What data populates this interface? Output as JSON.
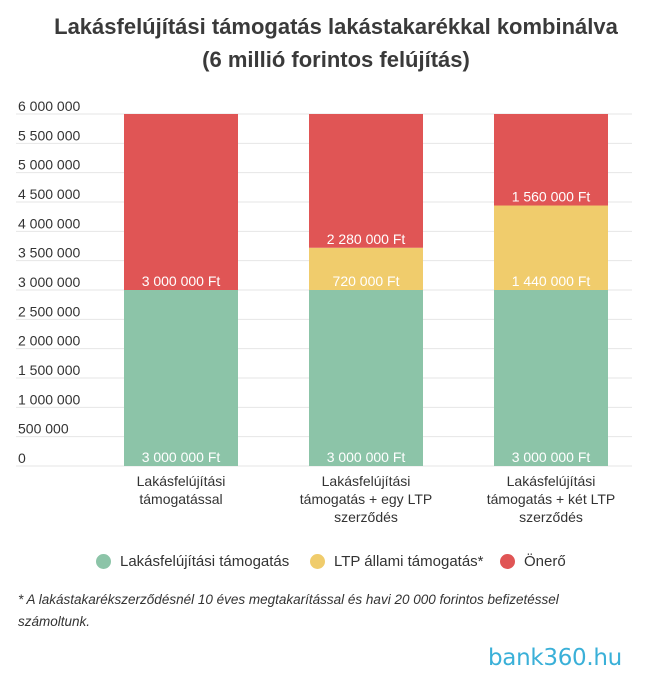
{
  "colors": {
    "support": "#8cc4a8",
    "ltp": "#f0cc6c",
    "own": "#e05555",
    "grid": "#e6e6e6",
    "text": "#333333"
  },
  "chart_data": {
    "type": "bar",
    "stacked": true,
    "title": "Lakásfelújítási támogatás lakástakarékkal kombinálva",
    "subtitle": "(6 millió forintos felújítás)",
    "ylim": [
      0,
      6000000
    ],
    "grid": true,
    "legend_position": "bottom",
    "ytick_labels": [
      "0",
      "500 000",
      "1 000 000",
      "1 500 000",
      "2 000 000",
      "2 500 000",
      "3 000 000",
      "3 500 000",
      "4 000 000",
      "4 500 000",
      "5 000 000",
      "5 500 000",
      "6 000 000"
    ],
    "categories": [
      [
        "Lakásfelújítási",
        "támogatással"
      ],
      [
        "Lakásfelújítási",
        "támogatás + egy LTP",
        "szerződés"
      ],
      [
        "Lakásfelújítási",
        "támogatás + két LTP",
        "szerződés"
      ]
    ],
    "series": [
      {
        "name": "Lakásfelújítási támogatás",
        "color_key": "support",
        "values": [
          3000000,
          3000000,
          3000000
        ],
        "labels": [
          "3 000 000 Ft",
          "3 000 000 Ft",
          "3 000 000 Ft"
        ]
      },
      {
        "name": "LTP állami támogatás*",
        "color_key": "ltp",
        "values": [
          0,
          720000,
          1440000
        ],
        "labels": [
          "",
          "720 000 Ft",
          "1 440 000 Ft"
        ]
      },
      {
        "name": "Önerő",
        "color_key": "own",
        "values": [
          3000000,
          2280000,
          1560000
        ],
        "labels": [
          "3 000 000 Ft",
          "2 280 000 Ft",
          "1 560 000 Ft"
        ]
      }
    ]
  },
  "footnote": "* A lakástakarékszerződésnél 10 éves megtakarítással és havi 20 000 forintos befizetéssel számoltunk.",
  "logo": "bank360.hu"
}
